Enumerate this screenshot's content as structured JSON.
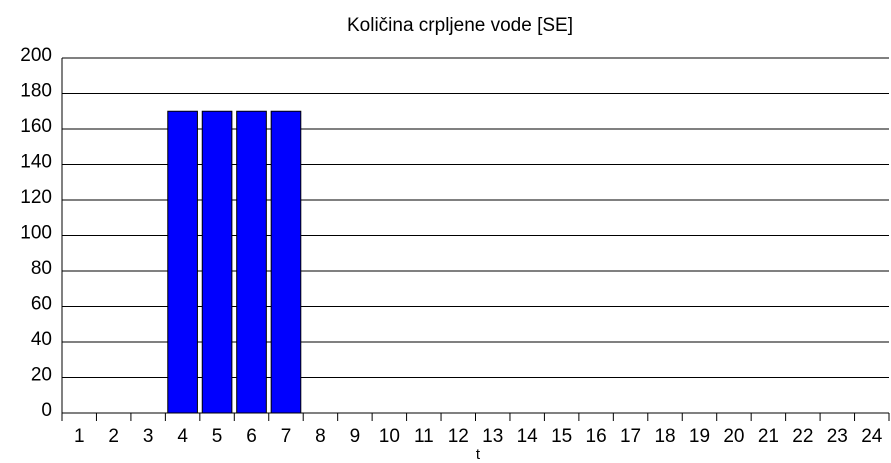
{
  "chart_data": {
    "type": "bar",
    "title": "Količina crpljene vode [SE]",
    "x_label": "t",
    "categories": [
      "1",
      "2",
      "3",
      "4",
      "5",
      "6",
      "7",
      "8",
      "9",
      "10",
      "11",
      "12",
      "13",
      "14",
      "15",
      "16",
      "17",
      "18",
      "19",
      "20",
      "21",
      "22",
      "23",
      "24"
    ],
    "values": [
      0,
      0,
      0,
      170,
      170,
      170,
      170,
      0,
      0,
      0,
      0,
      0,
      0,
      0,
      0,
      0,
      0,
      0,
      0,
      0,
      0,
      0,
      0,
      0
    ],
    "color": "#0000ff",
    "ylim": [
      0,
      200
    ],
    "yticks": [
      0,
      20,
      40,
      60,
      80,
      100,
      120,
      140,
      160,
      180,
      200
    ],
    "grid": true
  }
}
